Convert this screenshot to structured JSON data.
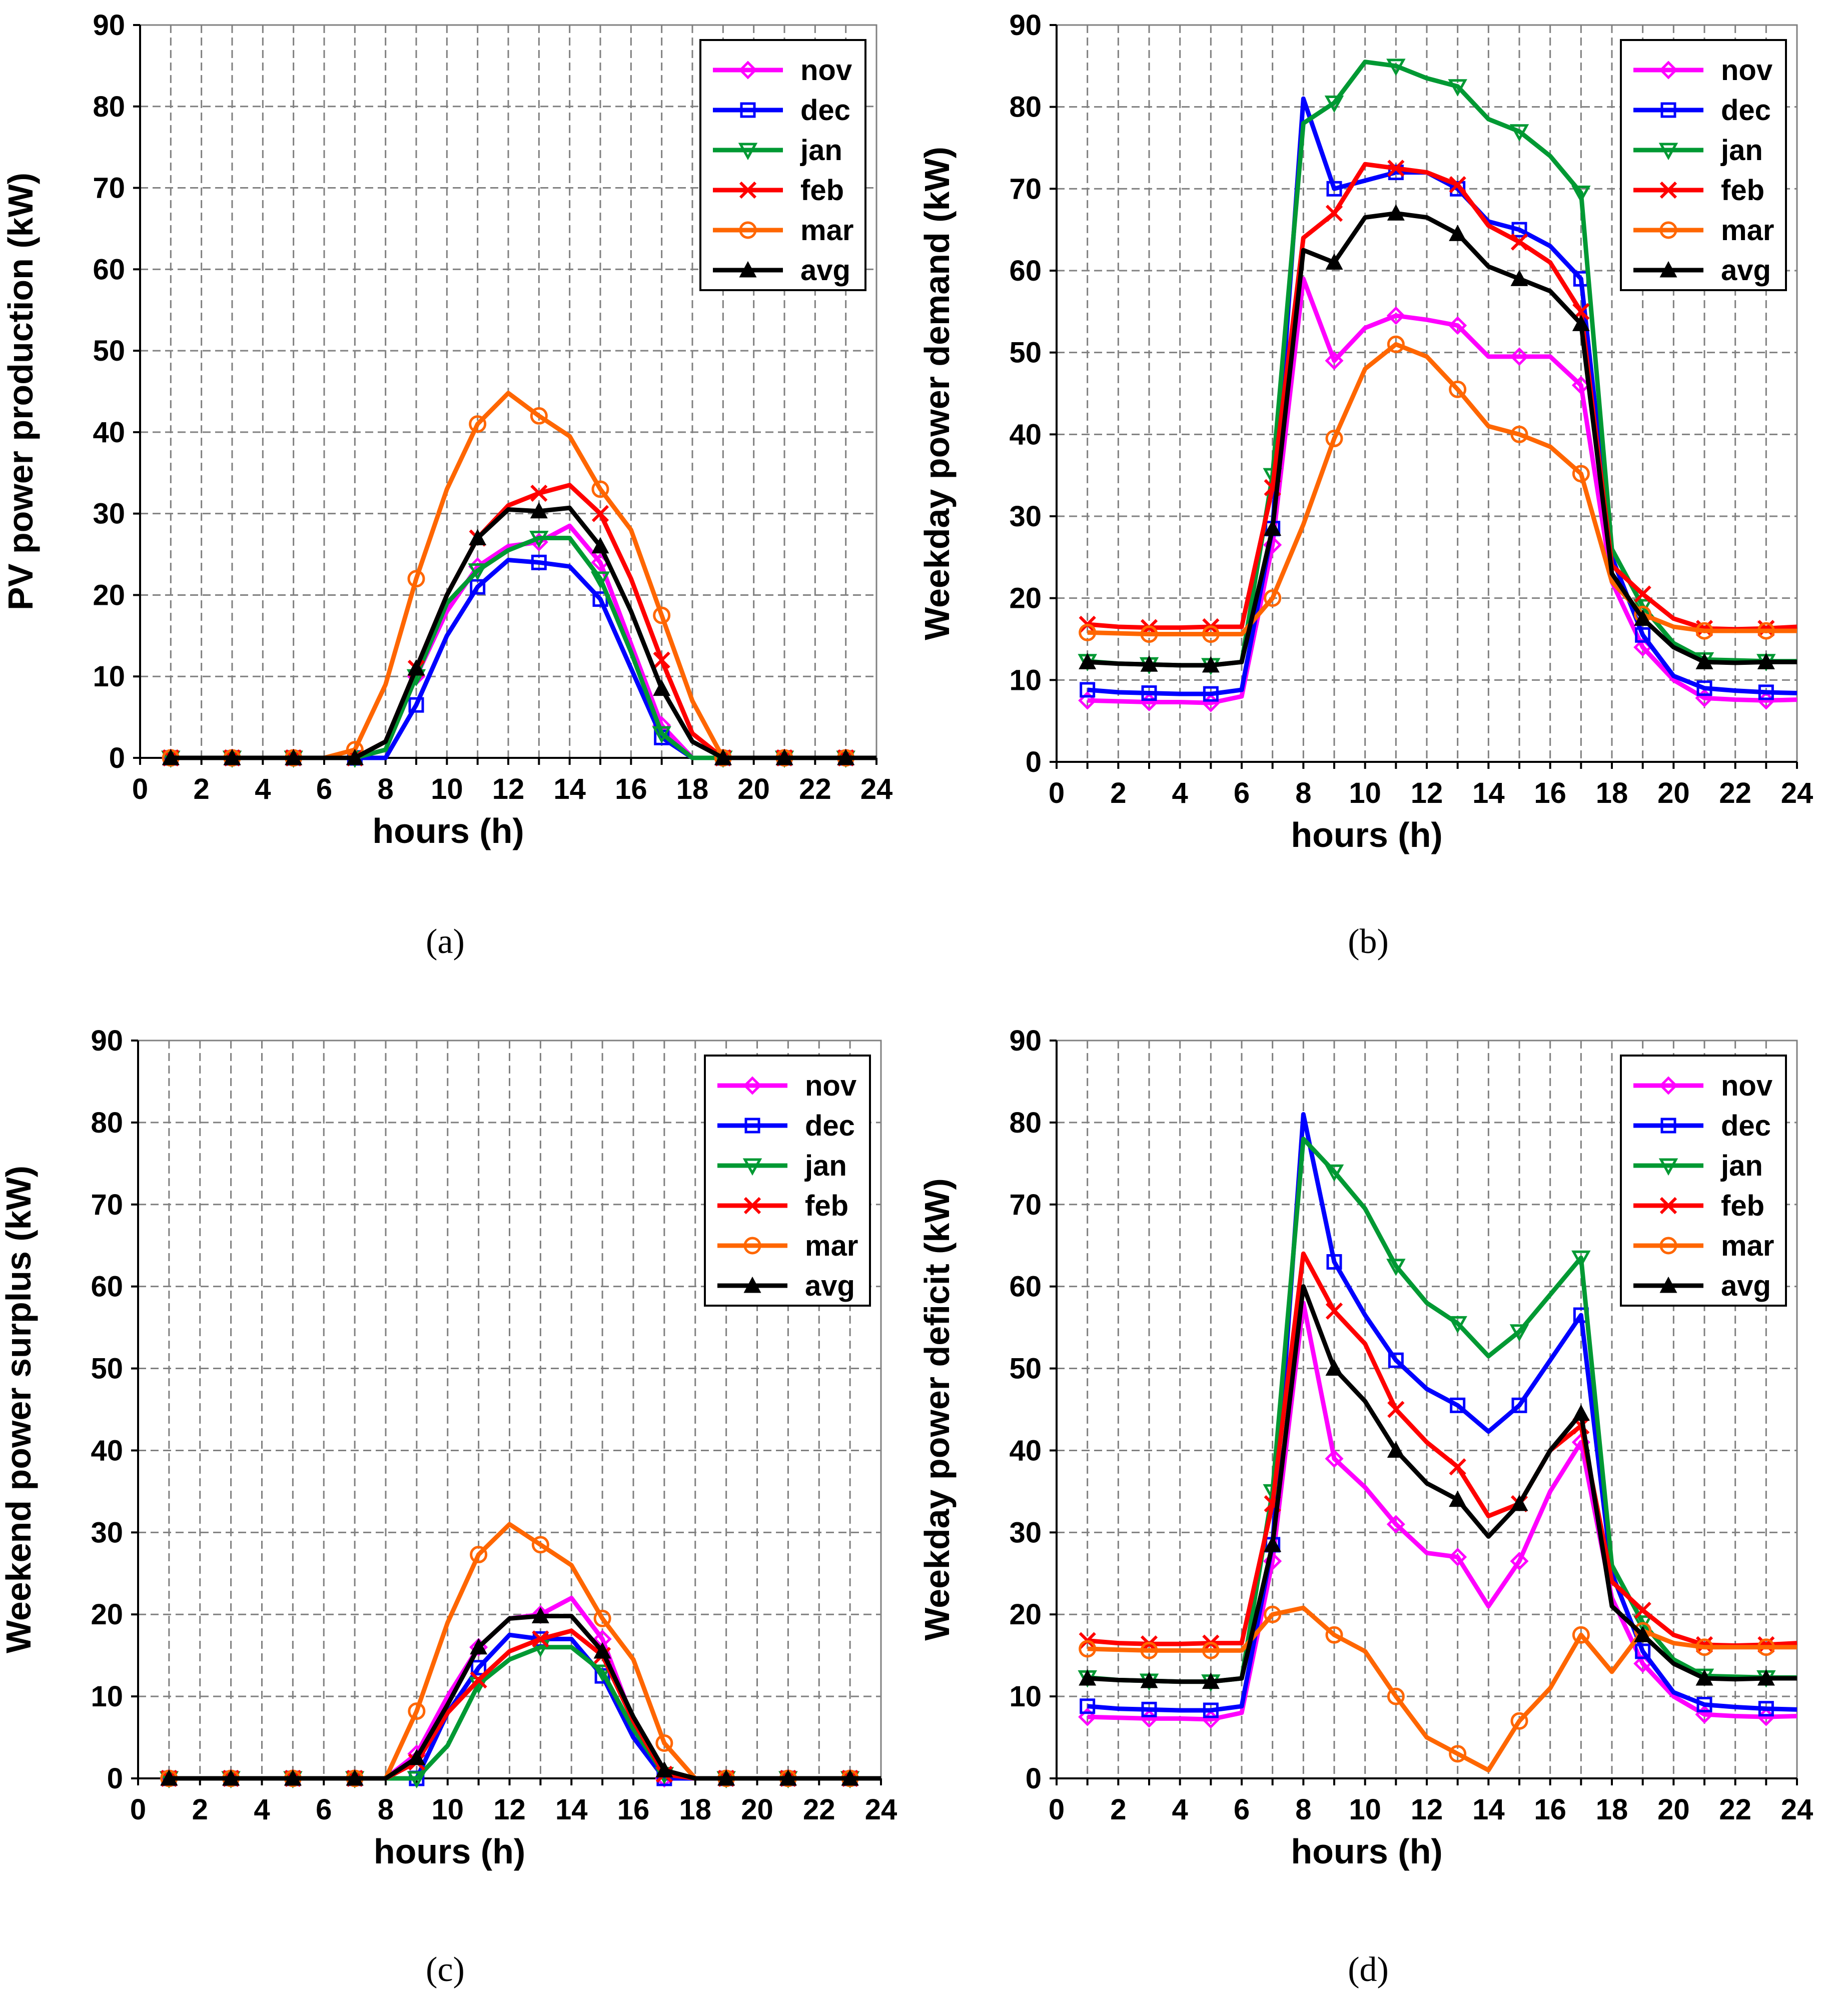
{
  "chart_data": [
    {
      "type": "line",
      "panel_label": "(a)",
      "ylabel": "PV power production (kW)",
      "xlabel": "hours (h)",
      "xlim": [
        0,
        24
      ],
      "ylim": [
        0,
        90
      ],
      "xticks": [
        "0",
        "2",
        "4",
        "6",
        "8",
        "10",
        "12",
        "14",
        "16",
        "18",
        "20",
        "22",
        "24"
      ],
      "yticks": [
        "0",
        "10",
        "20",
        "30",
        "40",
        "50",
        "60",
        "70",
        "80",
        "90"
      ],
      "legend": "top-right",
      "x": [
        1,
        2,
        3,
        4,
        5,
        6,
        7,
        8,
        9,
        10,
        11,
        12,
        13,
        14,
        15,
        16,
        17,
        18,
        19,
        20,
        21,
        22,
        23,
        24
      ],
      "series": [
        {
          "name": "nov",
          "color": "#ff00ff",
          "marker": "diamond",
          "values": [
            0,
            0,
            0,
            0,
            0,
            0,
            0,
            1,
            10,
            18,
            23.5,
            26,
            26.5,
            28.5,
            24,
            14,
            4,
            0,
            0,
            0,
            0,
            0,
            0,
            0
          ]
        },
        {
          "name": "dec",
          "color": "#0000ff",
          "marker": "square",
          "values": [
            0,
            0,
            0,
            0,
            0,
            0,
            0,
            0,
            6.5,
            15,
            21,
            24.3,
            24,
            23.5,
            19.5,
            11,
            2.5,
            0,
            0,
            0,
            0,
            0,
            0,
            0
          ]
        },
        {
          "name": "jan",
          "color": "#009933",
          "marker": "triangle-down",
          "values": [
            0,
            0,
            0,
            0,
            0,
            0,
            0,
            1,
            10,
            19,
            23,
            25.5,
            27,
            27,
            22,
            13,
            3,
            0,
            0,
            0,
            0,
            0,
            0,
            0
          ]
        },
        {
          "name": "feb",
          "color": "#ff0000",
          "marker": "x",
          "values": [
            0,
            0,
            0,
            0,
            0,
            0,
            0,
            2,
            11,
            20,
            27,
            31,
            32.5,
            33.5,
            30,
            22,
            12,
            3,
            0,
            0,
            0,
            0,
            0,
            0
          ]
        },
        {
          "name": "mar",
          "color": "#ff6600",
          "marker": "circle",
          "values": [
            0,
            0,
            0,
            0,
            0,
            0,
            1,
            9,
            22,
            33,
            41,
            44.8,
            42,
            39.5,
            33,
            28,
            17.5,
            7,
            0,
            0,
            0,
            0,
            0,
            0
          ]
        },
        {
          "name": "avg",
          "color": "#000000",
          "marker": "triangle-up",
          "values": [
            0,
            0,
            0,
            0,
            0,
            0,
            0,
            2,
            11,
            20,
            27,
            30.5,
            30.3,
            30.7,
            26,
            18,
            8.5,
            2,
            0,
            0,
            0,
            0,
            0,
            0
          ]
        }
      ]
    },
    {
      "type": "line",
      "panel_label": "(b)",
      "ylabel": "Weekday power demand (kW)",
      "xlabel": "hours (h)",
      "xlim": [
        0,
        24
      ],
      "ylim": [
        0,
        90
      ],
      "xticks": [
        "0",
        "2",
        "4",
        "6",
        "8",
        "10",
        "12",
        "14",
        "16",
        "18",
        "20",
        "22",
        "24"
      ],
      "yticks": [
        "0",
        "10",
        "20",
        "30",
        "40",
        "50",
        "60",
        "70",
        "80",
        "90"
      ],
      "legend": "top-right",
      "x": [
        1,
        2,
        3,
        4,
        5,
        6,
        7,
        8,
        9,
        10,
        11,
        12,
        13,
        14,
        15,
        16,
        17,
        18,
        19,
        20,
        21,
        22,
        23,
        24
      ],
      "series": [
        {
          "name": "nov",
          "color": "#ff00ff",
          "marker": "diamond",
          "values": [
            7.5,
            7.4,
            7.3,
            7.3,
            7.2,
            8,
            26.5,
            59,
            49,
            53,
            54.5,
            54,
            53.3,
            49.5,
            49.5,
            49.5,
            46,
            22,
            14,
            10,
            7.8,
            7.6,
            7.5,
            7.6
          ]
        },
        {
          "name": "dec",
          "color": "#0000ff",
          "marker": "square",
          "values": [
            8.8,
            8.5,
            8.4,
            8.3,
            8.3,
            8.8,
            28.5,
            81,
            70,
            71,
            72,
            72,
            70,
            66,
            65,
            63,
            59,
            25,
            15.5,
            10.5,
            9,
            8.7,
            8.5,
            8.4
          ]
        },
        {
          "name": "jan",
          "color": "#009933",
          "marker": "triangle-down",
          "values": [
            12.3,
            12,
            11.9,
            11.8,
            11.8,
            12.2,
            35,
            78,
            80.5,
            85.5,
            85,
            83.5,
            82.5,
            78.5,
            77,
            74,
            69.5,
            26,
            19,
            14.5,
            12.5,
            12.4,
            12.3,
            12.3
          ]
        },
        {
          "name": "feb",
          "color": "#ff0000",
          "marker": "x",
          "values": [
            16.8,
            16.5,
            16.4,
            16.4,
            16.5,
            16.5,
            33.5,
            64,
            67,
            73,
            72.5,
            72,
            70.5,
            65.5,
            63.5,
            61,
            55,
            24,
            20.5,
            17.5,
            16.3,
            16.2,
            16.3,
            16.5
          ]
        },
        {
          "name": "mar",
          "color": "#ff6600",
          "marker": "circle",
          "values": [
            15.8,
            15.7,
            15.6,
            15.6,
            15.6,
            15.6,
            20,
            29,
            39.5,
            48,
            51,
            49.5,
            45.5,
            41,
            40,
            38.5,
            35.2,
            22,
            18,
            16.5,
            16,
            16,
            16,
            16
          ]
        },
        {
          "name": "avg",
          "color": "#000000",
          "marker": "triangle-up",
          "values": [
            12.2,
            12,
            11.9,
            11.8,
            11.8,
            12.2,
            28.5,
            62.5,
            61,
            66.5,
            67,
            66.5,
            64.5,
            60.5,
            59,
            57.5,
            53.5,
            23,
            17.5,
            14,
            12.2,
            12.1,
            12.2,
            12.2
          ]
        }
      ]
    },
    {
      "type": "line",
      "panel_label": "(c)",
      "ylabel": "Weekend power surplus (kW)",
      "xlabel": "hours (h)",
      "xlim": [
        0,
        24
      ],
      "ylim": [
        0,
        90
      ],
      "xticks": [
        "0",
        "2",
        "4",
        "6",
        "8",
        "10",
        "12",
        "14",
        "16",
        "18",
        "20",
        "22",
        "24"
      ],
      "yticks": [
        "0",
        "10",
        "20",
        "30",
        "40",
        "50",
        "60",
        "70",
        "80",
        "90"
      ],
      "legend": "top-right",
      "x": [
        1,
        2,
        3,
        4,
        5,
        6,
        7,
        8,
        9,
        10,
        11,
        12,
        13,
        14,
        15,
        16,
        17,
        18,
        19,
        20,
        21,
        22,
        23,
        24
      ],
      "series": [
        {
          "name": "nov",
          "color": "#ff00ff",
          "marker": "diamond",
          "values": [
            0,
            0,
            0,
            0,
            0,
            0,
            0,
            0,
            3,
            10,
            16,
            19.5,
            20,
            22,
            17,
            7,
            0,
            0,
            0,
            0,
            0,
            0,
            0,
            0
          ]
        },
        {
          "name": "dec",
          "color": "#0000ff",
          "marker": "square",
          "values": [
            0,
            0,
            0,
            0,
            0,
            0,
            0,
            0,
            0,
            8,
            13.5,
            17.5,
            17,
            17,
            12.5,
            5,
            0,
            0,
            0,
            0,
            0,
            0,
            0,
            0
          ]
        },
        {
          "name": "jan",
          "color": "#009933",
          "marker": "triangle-down",
          "values": [
            0,
            0,
            0,
            0,
            0,
            0,
            0,
            0,
            0,
            4,
            11.5,
            14.5,
            16,
            16,
            13,
            6,
            0.5,
            0,
            0,
            0,
            0,
            0,
            0,
            0
          ]
        },
        {
          "name": "feb",
          "color": "#ff0000",
          "marker": "x",
          "values": [
            0,
            0,
            0,
            0,
            0,
            0,
            0,
            0,
            2,
            8,
            12,
            15.5,
            17,
            18,
            15,
            7,
            0.5,
            0,
            0,
            0,
            0,
            0,
            0,
            0
          ]
        },
        {
          "name": "mar",
          "color": "#ff6600",
          "marker": "circle",
          "values": [
            0,
            0,
            0,
            0,
            0,
            0,
            0,
            0,
            8.2,
            19,
            27.3,
            31,
            28.5,
            26,
            19.5,
            14.5,
            4.3,
            0,
            0,
            0,
            0,
            0,
            0,
            0
          ]
        },
        {
          "name": "avg",
          "color": "#000000",
          "marker": "triangle-up",
          "values": [
            0,
            0,
            0,
            0,
            0,
            0,
            0,
            0,
            2.5,
            9,
            16,
            19.5,
            19.8,
            19.8,
            15.5,
            7.5,
            1,
            0,
            0,
            0,
            0,
            0,
            0,
            0
          ]
        }
      ]
    },
    {
      "type": "line",
      "panel_label": "(d)",
      "ylabel": "Weekday power deficit (kW)",
      "xlabel": "hours (h)",
      "xlim": [
        0,
        24
      ],
      "ylim": [
        0,
        90
      ],
      "xticks": [
        "0",
        "2",
        "4",
        "6",
        "8",
        "10",
        "12",
        "14",
        "16",
        "18",
        "20",
        "22",
        "24"
      ],
      "yticks": [
        "0",
        "10",
        "20",
        "30",
        "40",
        "50",
        "60",
        "70",
        "80",
        "90"
      ],
      "legend": "top-right",
      "x": [
        1,
        2,
        3,
        4,
        5,
        6,
        7,
        8,
        9,
        10,
        11,
        12,
        13,
        14,
        15,
        16,
        17,
        18,
        19,
        20,
        21,
        22,
        23,
        24
      ],
      "series": [
        {
          "name": "nov",
          "color": "#ff00ff",
          "marker": "diamond",
          "values": [
            7.5,
            7.4,
            7.3,
            7.3,
            7.2,
            8,
            26.5,
            58,
            39,
            35.5,
            31,
            27.5,
            27,
            21,
            26.5,
            35,
            41,
            22,
            14,
            10,
            7.8,
            7.6,
            7.5,
            7.6
          ]
        },
        {
          "name": "dec",
          "color": "#0000ff",
          "marker": "square",
          "values": [
            8.8,
            8.5,
            8.4,
            8.3,
            8.3,
            8.8,
            28.5,
            81,
            63,
            56.5,
            51,
            47.5,
            45.5,
            42.3,
            45.5,
            51,
            56.5,
            25,
            15.5,
            10.5,
            9,
            8.7,
            8.5,
            8.4
          ]
        },
        {
          "name": "jan",
          "color": "#009933",
          "marker": "triangle-down",
          "values": [
            12.3,
            12,
            11.9,
            11.8,
            11.8,
            12.2,
            35,
            78,
            74,
            69.5,
            62.5,
            58,
            55.5,
            51.5,
            54.5,
            59,
            63.5,
            26,
            19,
            14.5,
            12.5,
            12.4,
            12.3,
            12.3
          ]
        },
        {
          "name": "feb",
          "color": "#ff0000",
          "marker": "x",
          "values": [
            16.8,
            16.5,
            16.4,
            16.4,
            16.5,
            16.5,
            33.5,
            64,
            57,
            53,
            45,
            41,
            38,
            32,
            33.5,
            40,
            43,
            24,
            20.5,
            17.5,
            16.3,
            16.2,
            16.3,
            16.5
          ]
        },
        {
          "name": "mar",
          "color": "#ff6600",
          "marker": "circle",
          "values": [
            15.8,
            15.7,
            15.6,
            15.6,
            15.6,
            15.6,
            20,
            20.8,
            17.5,
            15.5,
            10,
            5,
            3,
            1,
            7,
            11,
            17.5,
            13,
            18,
            16.5,
            16,
            16,
            16,
            16
          ]
        },
        {
          "name": "avg",
          "color": "#000000",
          "marker": "triangle-up",
          "values": [
            12.2,
            12,
            11.9,
            11.8,
            11.8,
            12.2,
            28.5,
            60,
            50,
            46,
            40,
            36,
            34,
            29.5,
            33.5,
            40,
            44.5,
            21,
            17.5,
            14,
            12.2,
            12.1,
            12.2,
            12.2
          ]
        }
      ]
    }
  ]
}
